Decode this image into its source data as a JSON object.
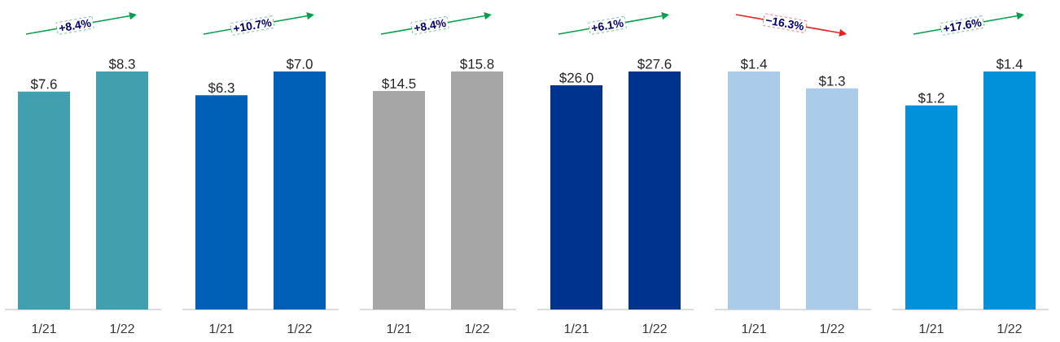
{
  "chart_data": [
    {
      "type": "bar",
      "categories": [
        "1/21",
        "1/22"
      ],
      "values": [
        7.6,
        8.3
      ],
      "color": "#419fae",
      "value_labels": [
        "$7.6",
        "$8.3"
      ],
      "annotations": [
        "+8.4%"
      ]
    },
    {
      "type": "bar",
      "categories": [
        "1/21",
        "1/22"
      ],
      "values": [
        6.3,
        7.0
      ],
      "color": "#0060b8",
      "value_labels": [
        "$6.3",
        "$7.0"
      ],
      "annotations": [
        "+10.7%"
      ]
    },
    {
      "type": "bar",
      "categories": [
        "1/21",
        "1/22"
      ],
      "values": [
        14.5,
        15.8
      ],
      "color": "#a6a6a6",
      "value_labels": [
        "$14.5",
        "$15.8"
      ],
      "annotations": [
        "+8.4%"
      ]
    },
    {
      "type": "bar",
      "categories": [
        "1/21",
        "1/22"
      ],
      "values": [
        26.0,
        27.6
      ],
      "color": "#00338d",
      "value_labels": [
        "$26.0",
        "$27.6"
      ],
      "annotations": [
        "+6.1%"
      ]
    },
    {
      "type": "bar",
      "categories": [
        "1/21",
        "1/22"
      ],
      "values": [
        1.4,
        1.3
      ],
      "color": "#abcbea",
      "value_labels": [
        "$1.4",
        "$1.3"
      ],
      "annotations": [
        "−16.3%"
      ]
    },
    {
      "type": "bar",
      "categories": [
        "1/21",
        "1/22"
      ],
      "values": [
        1.2,
        1.4
      ],
      "color": "#0091da",
      "value_labels": [
        "$1.2",
        "$1.4"
      ],
      "annotations": [
        "+17.6%"
      ]
    }
  ]
}
